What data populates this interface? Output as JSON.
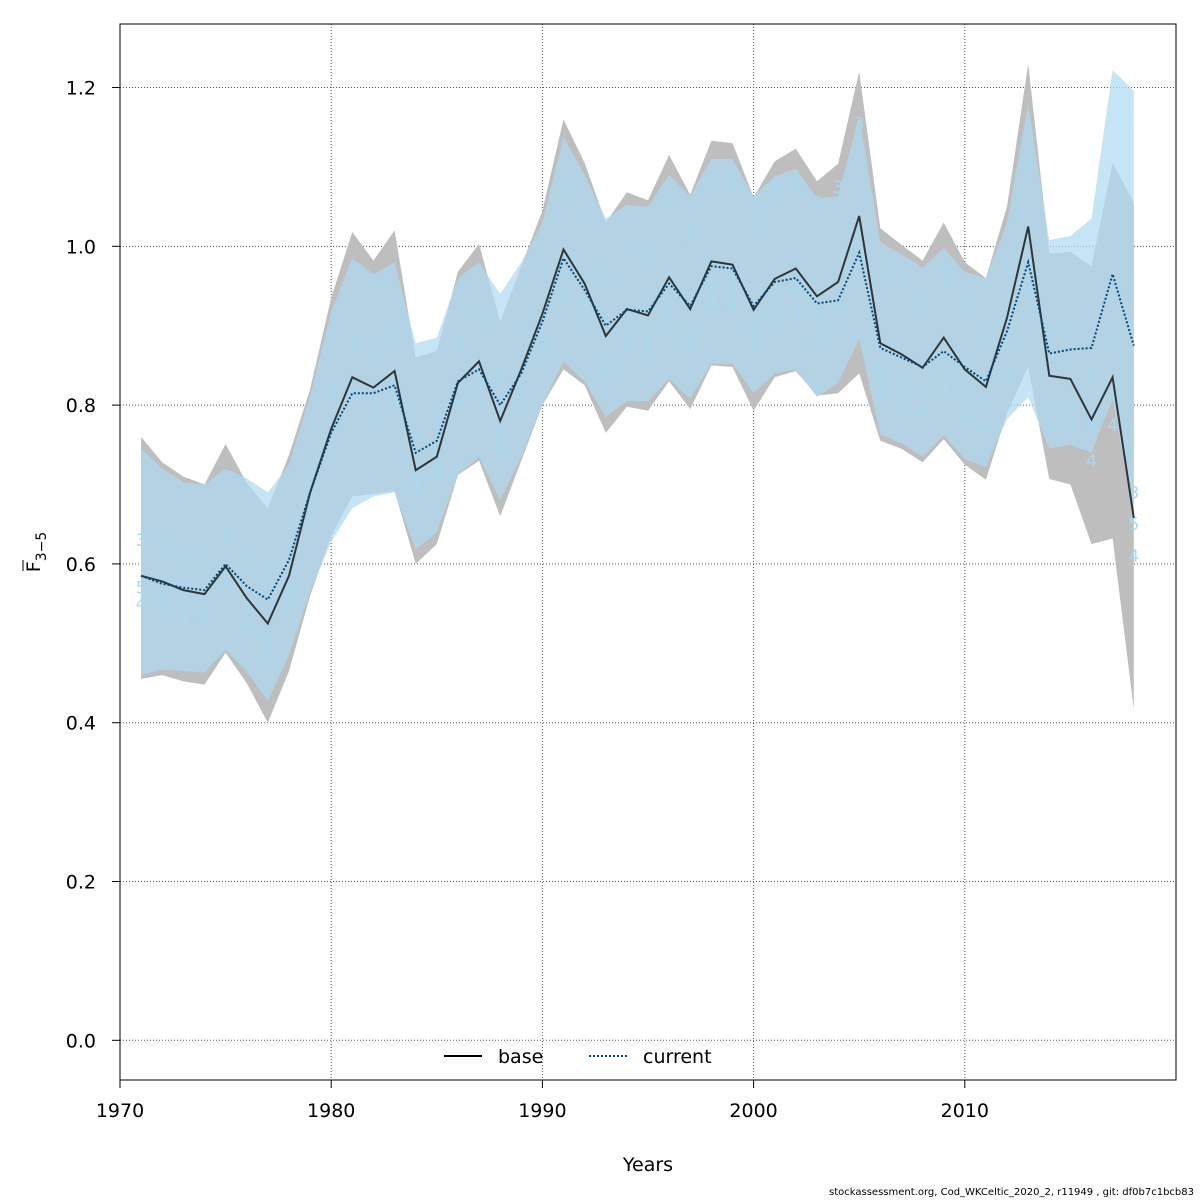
{
  "chart_data": {
    "type": "line",
    "xlabel": "Years",
    "ylabel_main": "F",
    "ylabel_sub": "3−5",
    "xlim": [
      1970,
      2019
    ],
    "ylim": [
      0,
      1.25
    ],
    "xticks": [
      1970,
      1980,
      1990,
      2000,
      2010
    ],
    "yticks": [
      "0.0",
      "0.2",
      "0.4",
      "0.6",
      "0.8",
      "1.0",
      "1.2"
    ],
    "grid": true,
    "legend_position": "bottom-center",
    "colors": {
      "base": "#000000",
      "current": "#00487a",
      "base_band": "#bebebe",
      "current_band": "#aed9f3",
      "age_labels": "#a9d8ef"
    },
    "years": [
      1971,
      1972,
      1973,
      1974,
      1975,
      1976,
      1977,
      1978,
      1979,
      1980,
      1981,
      1982,
      1983,
      1984,
      1985,
      1986,
      1987,
      1988,
      1989,
      1990,
      1991,
      1992,
      1993,
      1994,
      1995,
      1996,
      1997,
      1998,
      1999,
      2000,
      2001,
      2002,
      2003,
      2004,
      2005,
      2006,
      2007,
      2008,
      2009,
      2010,
      2011,
      2012,
      2013,
      2014,
      2015,
      2016,
      2017,
      2018
    ],
    "series": [
      {
        "name": "base",
        "style": "solid",
        "values": [
          0.585,
          0.578,
          0.567,
          0.562,
          0.597,
          0.557,
          0.525,
          0.585,
          0.69,
          0.77,
          0.835,
          0.822,
          0.843,
          0.718,
          0.735,
          0.828,
          0.855,
          0.78,
          0.845,
          0.915,
          0.996,
          0.953,
          0.887,
          0.921,
          0.913,
          0.961,
          0.921,
          0.981,
          0.977,
          0.92,
          0.959,
          0.972,
          0.937,
          0.955,
          1.038,
          0.878,
          0.864,
          0.847,
          0.885,
          0.845,
          0.823,
          0.91,
          1.025,
          0.837,
          0.833,
          0.782,
          0.835,
          0.658
        ],
        "lower": [
          0.455,
          0.46,
          0.452,
          0.448,
          0.488,
          0.45,
          0.4,
          0.465,
          0.56,
          0.635,
          0.685,
          0.688,
          0.692,
          0.6,
          0.625,
          0.712,
          0.73,
          0.66,
          0.73,
          0.8,
          0.845,
          0.825,
          0.765,
          0.798,
          0.793,
          0.83,
          0.795,
          0.85,
          0.848,
          0.793,
          0.835,
          0.843,
          0.812,
          0.815,
          0.84,
          0.755,
          0.745,
          0.728,
          0.757,
          0.725,
          0.706,
          0.79,
          0.848,
          0.707,
          0.7,
          0.625,
          0.632,
          0.417
        ],
        "upper": [
          0.76,
          0.728,
          0.71,
          0.7,
          0.751,
          0.702,
          0.67,
          0.737,
          0.82,
          0.935,
          1.018,
          0.982,
          1.02,
          0.86,
          0.868,
          0.968,
          1.003,
          0.905,
          0.975,
          1.045,
          1.16,
          1.105,
          1.03,
          1.068,
          1.058,
          1.115,
          1.065,
          1.133,
          1.13,
          1.062,
          1.107,
          1.123,
          1.082,
          1.104,
          1.22,
          1.023,
          1.002,
          0.982,
          1.03,
          0.98,
          0.96,
          1.05,
          1.23,
          0.991,
          0.993,
          0.975,
          1.105,
          1.055
        ]
      },
      {
        "name": "current",
        "style": "dotted",
        "values": [
          0.585,
          0.575,
          0.57,
          0.567,
          0.6,
          0.572,
          0.555,
          0.605,
          0.69,
          0.765,
          0.815,
          0.815,
          0.825,
          0.74,
          0.755,
          0.83,
          0.845,
          0.8,
          0.84,
          0.905,
          0.985,
          0.945,
          0.9,
          0.92,
          0.918,
          0.953,
          0.925,
          0.975,
          0.972,
          0.925,
          0.955,
          0.96,
          0.928,
          0.932,
          0.992,
          0.872,
          0.86,
          0.848,
          0.868,
          0.848,
          0.83,
          0.893,
          0.98,
          0.865,
          0.87,
          0.872,
          0.965,
          0.875
        ],
        "lower": [
          0.46,
          0.467,
          0.465,
          0.463,
          0.492,
          0.465,
          0.427,
          0.485,
          0.565,
          0.628,
          0.67,
          0.685,
          0.69,
          0.618,
          0.64,
          0.712,
          0.735,
          0.68,
          0.735,
          0.8,
          0.855,
          0.83,
          0.785,
          0.805,
          0.805,
          0.833,
          0.808,
          0.852,
          0.852,
          0.815,
          0.84,
          0.845,
          0.81,
          0.828,
          0.883,
          0.763,
          0.752,
          0.735,
          0.762,
          0.732,
          0.722,
          0.782,
          0.81,
          0.745,
          0.75,
          0.74,
          0.808,
          0.66
        ],
        "upper": [
          0.745,
          0.72,
          0.703,
          0.7,
          0.72,
          0.708,
          0.69,
          0.725,
          0.812,
          0.918,
          0.985,
          0.965,
          0.98,
          0.878,
          0.885,
          0.96,
          0.98,
          0.94,
          0.98,
          1.03,
          1.138,
          1.09,
          1.035,
          1.052,
          1.05,
          1.09,
          1.063,
          1.11,
          1.11,
          1.063,
          1.088,
          1.098,
          1.06,
          1.063,
          1.165,
          1.005,
          0.99,
          0.973,
          0.998,
          0.968,
          0.96,
          1.03,
          1.18,
          1.008,
          1.013,
          1.035,
          1.222,
          1.196
        ]
      }
    ],
    "age_labels": [
      {
        "age": "3",
        "values": [
          0.63,
          0.62,
          0.61,
          0.61,
          0.63,
          0.61,
          0.59,
          0.62,
          0.72,
          0.815,
          0.882,
          0.868,
          0.89,
          0.76,
          0.78,
          0.88,
          0.91,
          0.835,
          0.895,
          0.97,
          1.075,
          1.035,
          0.965,
          0.995,
          0.99,
          1.05,
          1.015,
          1.085,
          1.085,
          1.03,
          1.075,
          1.085,
          1.055,
          1.075,
          1.155,
          0.965,
          0.955,
          0.925,
          0.965,
          0.93,
          0.89,
          0.97,
          1.1,
          0.89,
          0.89,
          0.835,
          0.89,
          0.69
        ]
      },
      {
        "age": "4",
        "values": [
          0.55,
          0.545,
          0.53,
          0.53,
          0.57,
          0.525,
          0.485,
          0.56,
          0.655,
          0.74,
          0.81,
          0.785,
          0.805,
          0.695,
          0.715,
          0.8,
          0.825,
          0.745,
          0.8,
          0.865,
          0.935,
          0.9,
          0.84,
          0.875,
          0.87,
          0.91,
          0.875,
          0.93,
          0.925,
          0.875,
          0.905,
          0.915,
          0.885,
          0.9,
          0.98,
          0.815,
          0.8,
          0.79,
          0.825,
          0.785,
          0.77,
          0.835,
          0.945,
          0.775,
          0.775,
          0.73,
          0.775,
          0.61
        ]
      },
      {
        "age": "5",
        "values": [
          0.57,
          0.56,
          0.55,
          0.545,
          0.585,
          0.545,
          0.505,
          0.575,
          0.675,
          0.755,
          0.825,
          0.805,
          0.825,
          0.705,
          0.73,
          0.815,
          0.84,
          0.765,
          0.815,
          0.88,
          0.965,
          0.925,
          0.855,
          0.89,
          0.885,
          0.925,
          0.89,
          0.95,
          0.95,
          0.9,
          0.93,
          0.945,
          0.91,
          0.925,
          1.01,
          0.84,
          0.83,
          0.815,
          0.85,
          0.815,
          0.8,
          0.875,
          0.975,
          0.8,
          0.8,
          0.775,
          0.815,
          0.65
        ]
      }
    ],
    "footer": "stockassessment.org, Cod_WKCeltic_2020_2, r11949 , git: df0b7c1bcb83"
  }
}
